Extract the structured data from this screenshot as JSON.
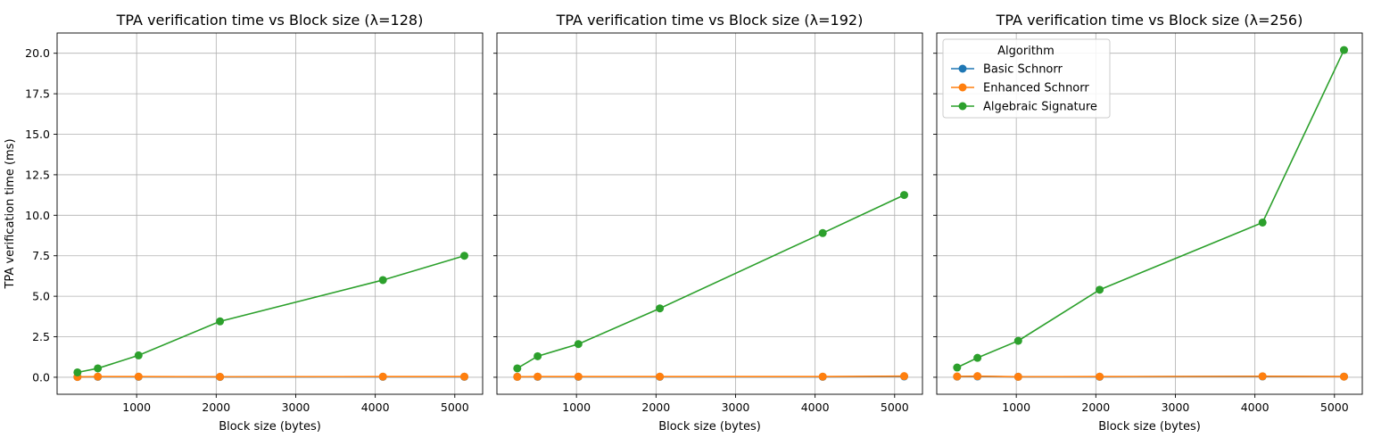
{
  "chart_data": [
    {
      "type": "line",
      "title": "TPA verification time vs Block size (λ=128)",
      "xlabel": "Block size (bytes)",
      "ylabel": "TPA verification time (ms)",
      "x": [
        256,
        512,
        1024,
        2048,
        4096,
        5120
      ],
      "xticks": [
        1000,
        2000,
        3000,
        4000,
        5000
      ],
      "yticks": [
        0.0,
        2.5,
        5.0,
        7.5,
        10.0,
        12.5,
        15.0,
        17.5,
        20.0
      ],
      "ytick_labels": [
        "0.0",
        "2.5",
        "5.0",
        "7.5",
        "10.0",
        "12.5",
        "15.0",
        "17.5",
        "20.0"
      ],
      "grid": true,
      "series": [
        {
          "name": "Basic Schnorr",
          "color": "#1f77b4",
          "values": [
            0.02,
            0.03,
            0.03,
            0.02,
            0.03,
            0.03
          ]
        },
        {
          "name": "Enhanced Schnorr",
          "color": "#ff7f0e",
          "values": [
            0.02,
            0.04,
            0.04,
            0.03,
            0.04,
            0.04
          ]
        },
        {
          "name": "Algebraic Signature",
          "color": "#2ca02c",
          "values": [
            0.3,
            0.55,
            1.35,
            3.45,
            6.0,
            7.5
          ]
        }
      ]
    },
    {
      "type": "line",
      "title": "TPA verification time vs Block size (λ=192)",
      "xlabel": "Block size (bytes)",
      "x": [
        256,
        512,
        1024,
        2048,
        4096,
        5120
      ],
      "xticks": [
        1000,
        2000,
        3000,
        4000,
        5000
      ],
      "grid": true,
      "series": [
        {
          "name": "Basic Schnorr",
          "color": "#1f77b4",
          "values": [
            0.03,
            0.03,
            0.03,
            0.03,
            0.03,
            0.05
          ]
        },
        {
          "name": "Enhanced Schnorr",
          "color": "#ff7f0e",
          "values": [
            0.03,
            0.04,
            0.04,
            0.04,
            0.04,
            0.07
          ]
        },
        {
          "name": "Algebraic Signature",
          "color": "#2ca02c",
          "values": [
            0.55,
            1.3,
            2.05,
            4.25,
            8.9,
            11.25
          ]
        }
      ]
    },
    {
      "type": "line",
      "title": "TPA verification time vs Block size (λ=256)",
      "xlabel": "Block size (bytes)",
      "x": [
        256,
        512,
        1024,
        2048,
        4096,
        5120
      ],
      "xticks": [
        1000,
        2000,
        3000,
        4000,
        5000
      ],
      "grid": true,
      "legend": {
        "title": "Algorithm",
        "placement": "top-left"
      },
      "series": [
        {
          "name": "Basic Schnorr",
          "color": "#1f77b4",
          "values": [
            0.04,
            0.05,
            0.03,
            0.03,
            0.05,
            0.04
          ]
        },
        {
          "name": "Enhanced Schnorr",
          "color": "#ff7f0e",
          "values": [
            0.05,
            0.07,
            0.03,
            0.04,
            0.06,
            0.04
          ]
        },
        {
          "name": "Algebraic Signature",
          "color": "#2ca02c",
          "values": [
            0.6,
            1.2,
            2.25,
            5.4,
            9.55,
            20.2
          ]
        }
      ]
    }
  ],
  "shared_axes": {
    "xlim": [
      0,
      5350
    ],
    "ylim": [
      -1.05,
      21.25
    ]
  }
}
